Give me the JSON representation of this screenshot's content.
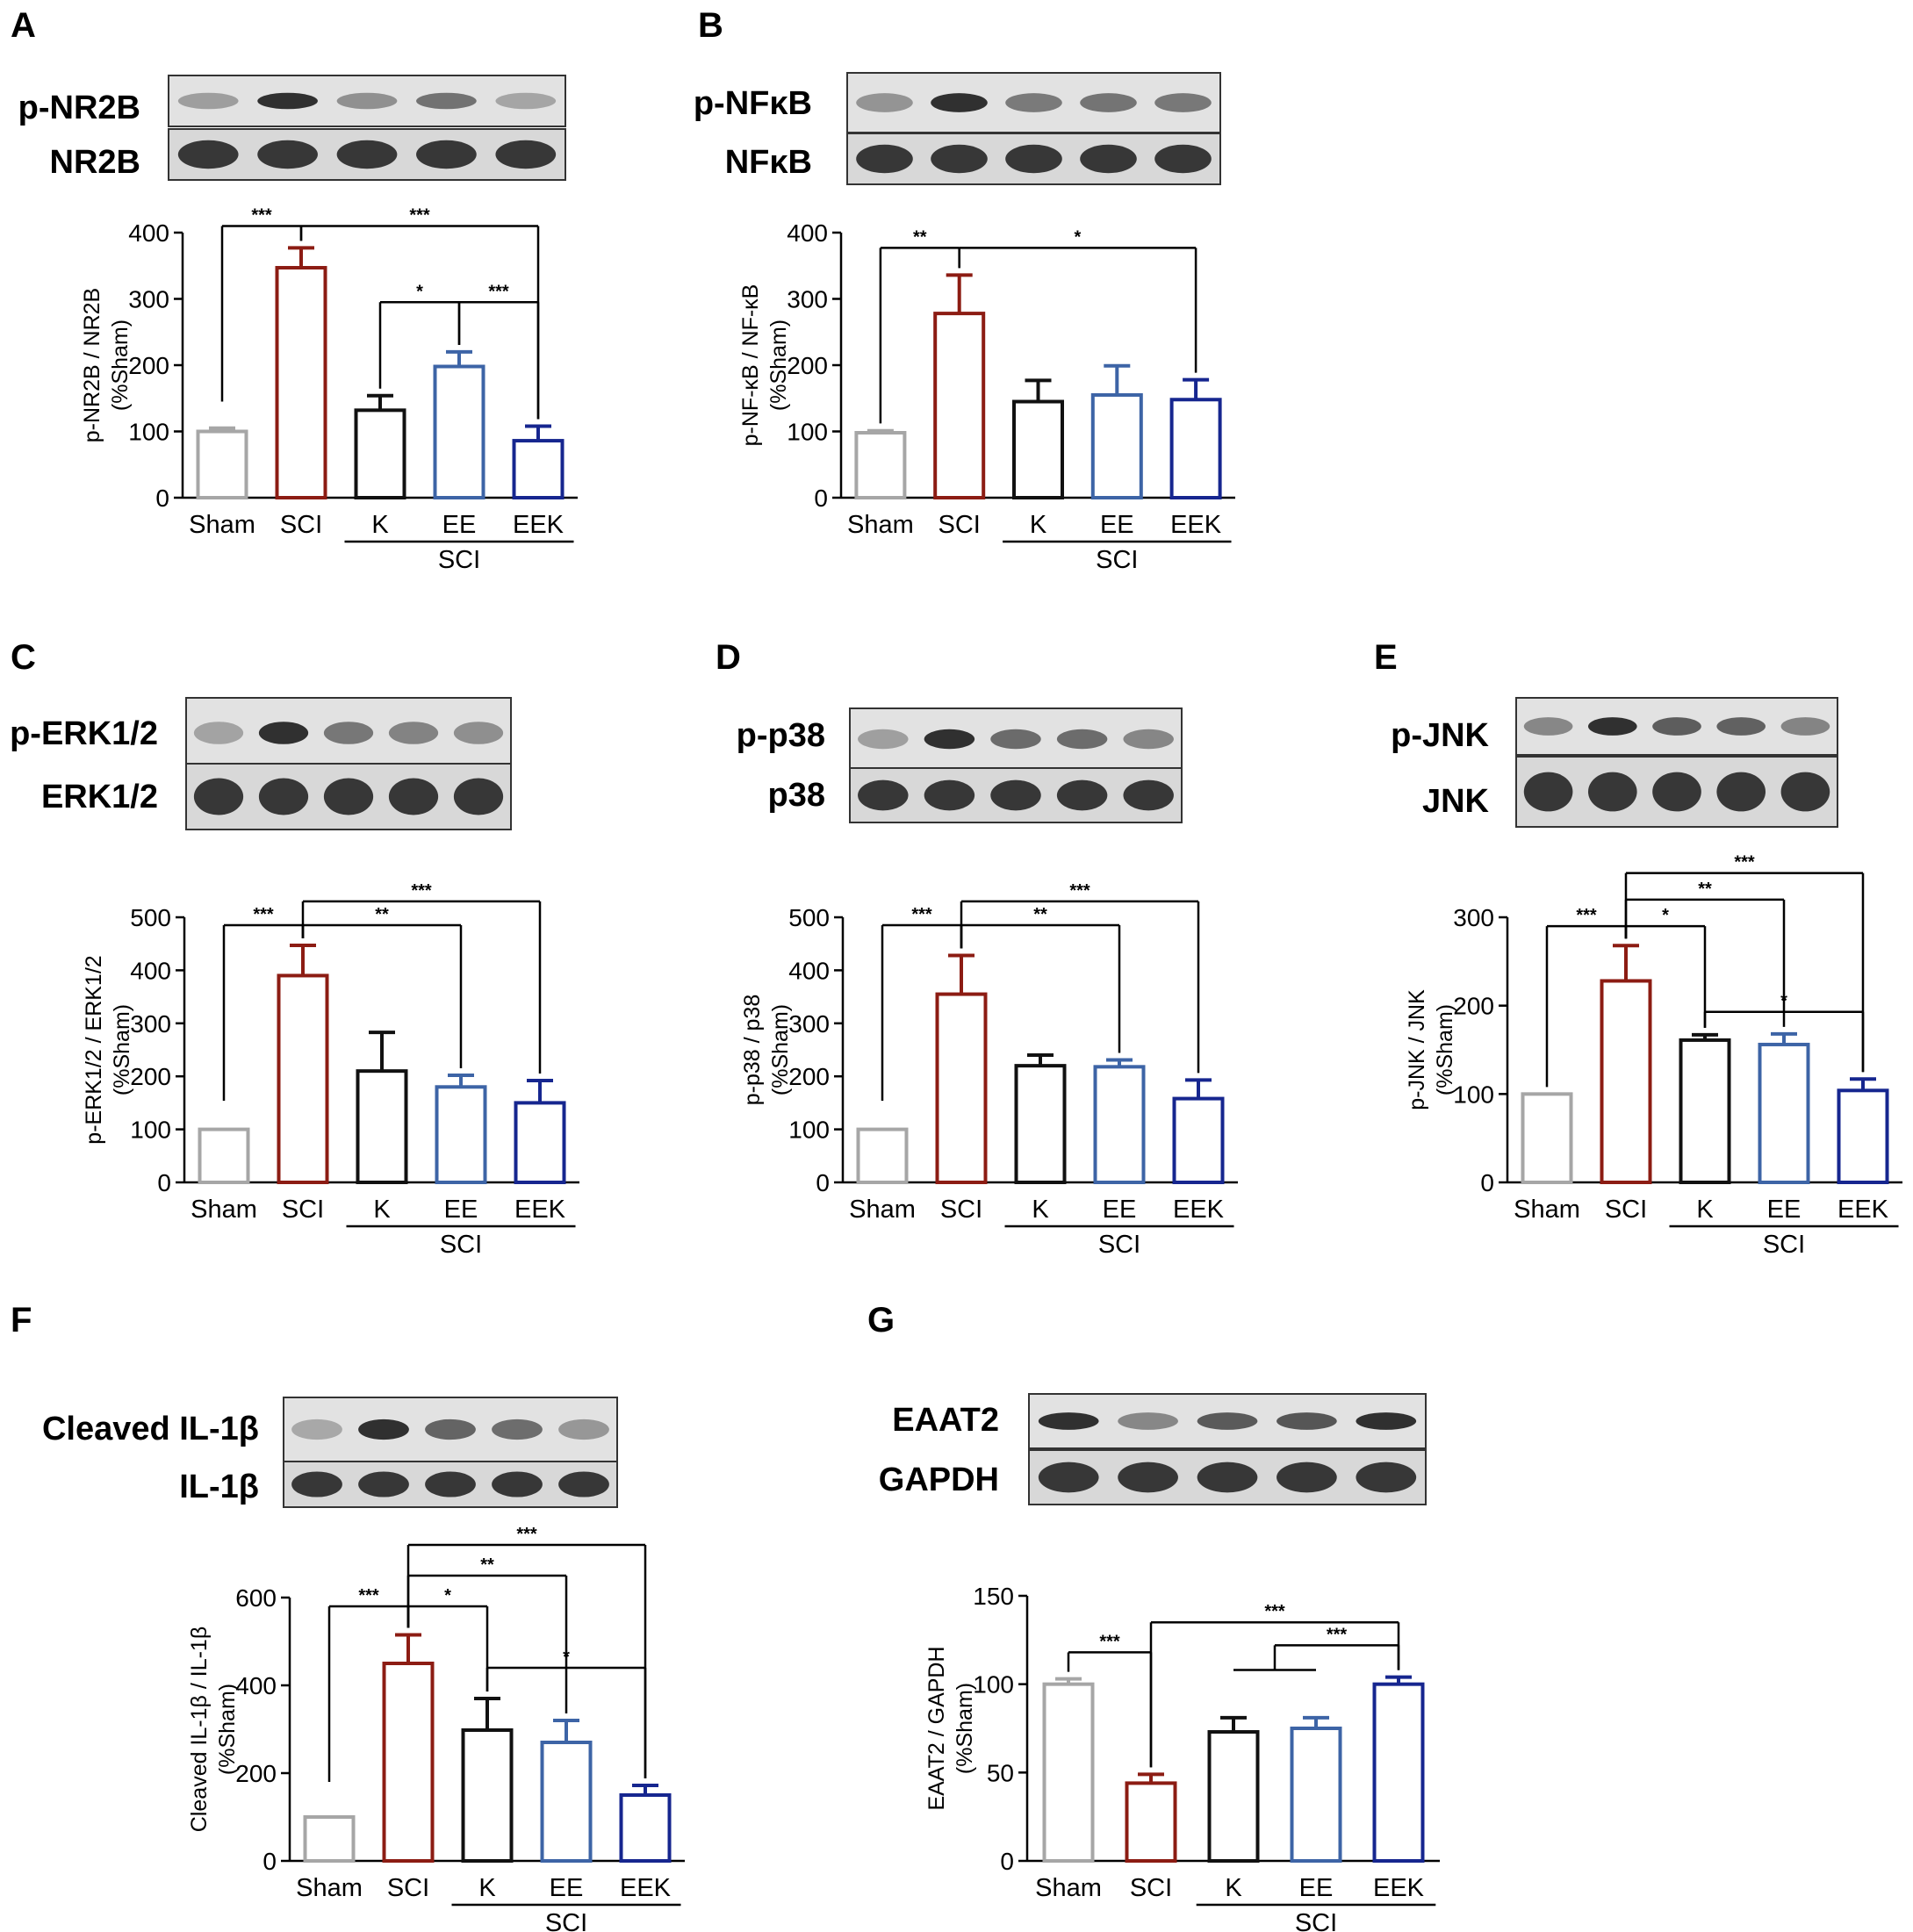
{
  "chart_data": [
    {
      "panel": "A",
      "type": "bar",
      "blot": {
        "rows": [
          "p-NR2B",
          "NR2B"
        ]
      },
      "categories": [
        "Sham",
        "SCI",
        "K",
        "EE",
        "EEK"
      ],
      "group_label": "SCI",
      "values": [
        100,
        347,
        132,
        198,
        86
      ],
      "errors": [
        5,
        30,
        22,
        22,
        22
      ],
      "colors": [
        "#a6a6a6",
        "#8c1c13",
        "#111111",
        "#3d64a6",
        "#16268f"
      ],
      "ylabel": [
        "p-NR2B / NR2B",
        "(%Sham)"
      ],
      "yticks": [
        0,
        100,
        200,
        300,
        400
      ],
      "ylim": [
        0,
        400
      ],
      "annotations": [
        {
          "from": 0,
          "to": 1,
          "label": "***",
          "level": 410
        },
        {
          "from": 1,
          "to": 4,
          "label": "***",
          "level": 410
        },
        {
          "from": 2,
          "to": 3,
          "label": "*",
          "level": 295
        },
        {
          "from": 3,
          "to": 4,
          "label": "***",
          "level": 295
        }
      ]
    },
    {
      "panel": "B",
      "type": "bar",
      "blot": {
        "rows": [
          "p-NFκB",
          "NFκB"
        ]
      },
      "categories": [
        "Sham",
        "SCI",
        "K",
        "EE",
        "EEK"
      ],
      "group_label": "SCI",
      "values": [
        98,
        278,
        145,
        155,
        148
      ],
      "errors": [
        3,
        58,
        32,
        44,
        30
      ],
      "colors": [
        "#a6a6a6",
        "#8c1c13",
        "#111111",
        "#3d64a6",
        "#16268f"
      ],
      "ylabel": [
        "p-NF-κB / NF-κB",
        "(%Sham)"
      ],
      "yticks": [
        0,
        100,
        200,
        300,
        400
      ],
      "ylim": [
        0,
        400
      ],
      "annotations": [
        {
          "from": 0,
          "to": 1,
          "label": "**",
          "level": 377
        },
        {
          "from": 1,
          "to": 4,
          "label": "*",
          "level": 377
        }
      ]
    },
    {
      "panel": "C",
      "type": "bar",
      "blot": {
        "rows": [
          "p-ERK1/2",
          "ERK1/2"
        ]
      },
      "categories": [
        "Sham",
        "SCI",
        "K",
        "EE",
        "EEK"
      ],
      "group_label": "SCI",
      "values": [
        100,
        390,
        210,
        180,
        150
      ],
      "errors": [
        0,
        57,
        73,
        22,
        42
      ],
      "colors": [
        "#a6a6a6",
        "#8c1c13",
        "#111111",
        "#3d64a6",
        "#16268f"
      ],
      "ylabel": [
        "p-ERK1/2 / ERK1/2",
        "(%Sham)"
      ],
      "yticks": [
        0,
        100,
        200,
        300,
        400,
        500
      ],
      "ylim": [
        0,
        500
      ],
      "annotations": [
        {
          "from": 0,
          "to": 1,
          "label": "***",
          "level": 485
        },
        {
          "from": 1,
          "to": 3,
          "label": "**",
          "level": 485
        },
        {
          "from": 1,
          "to": 4,
          "label": "***",
          "level": 530
        }
      ]
    },
    {
      "panel": "D",
      "type": "bar",
      "blot": {
        "rows": [
          "p-p38",
          "p38"
        ]
      },
      "categories": [
        "Sham",
        "SCI",
        "K",
        "EE",
        "EEK"
      ],
      "group_label": "SCI",
      "values": [
        100,
        355,
        220,
        218,
        158
      ],
      "errors": [
        0,
        73,
        20,
        13,
        35
      ],
      "colors": [
        "#a6a6a6",
        "#8c1c13",
        "#111111",
        "#3d64a6",
        "#16268f"
      ],
      "ylabel": [
        "p-p38 / p38",
        "(%Sham)"
      ],
      "yticks": [
        0,
        100,
        200,
        300,
        400,
        500
      ],
      "ylim": [
        0,
        500
      ],
      "annotations": [
        {
          "from": 0,
          "to": 1,
          "label": "***",
          "level": 485
        },
        {
          "from": 1,
          "to": 3,
          "label": "**",
          "level": 485
        },
        {
          "from": 1,
          "to": 4,
          "label": "***",
          "level": 530
        }
      ]
    },
    {
      "panel": "E",
      "type": "bar",
      "blot": {
        "rows": [
          "p-JNK",
          "JNK"
        ]
      },
      "categories": [
        "Sham",
        "SCI",
        "K",
        "EE",
        "EEK"
      ],
      "group_label": "SCI",
      "values": [
        100,
        228,
        161,
        156,
        104
      ],
      "errors": [
        0,
        40,
        6,
        12,
        13
      ],
      "colors": [
        "#a6a6a6",
        "#8c1c13",
        "#111111",
        "#3d64a6",
        "#16268f"
      ],
      "ylabel": [
        "p-JNK / JNK",
        "(%Sham)"
      ],
      "yticks": [
        0,
        100,
        200,
        300
      ],
      "ylim": [
        0,
        300
      ],
      "annotations": [
        {
          "from": 0,
          "to": 1,
          "label": "***",
          "level": 290
        },
        {
          "from": 1,
          "to": 2,
          "label": "*",
          "level": 290
        },
        {
          "from": 1,
          "to": 3,
          "label": "**",
          "level": 320
        },
        {
          "from": 1,
          "to": 4,
          "label": "***",
          "level": 350
        },
        {
          "from": 2,
          "to": 4,
          "label": "*",
          "level": 193
        }
      ]
    },
    {
      "panel": "F",
      "type": "bar",
      "blot": {
        "rows": [
          "Cleaved IL-1β",
          "IL-1β"
        ]
      },
      "categories": [
        "Sham",
        "SCI",
        "K",
        "EE",
        "EEK"
      ],
      "group_label": "SCI",
      "values": [
        100,
        450,
        298,
        270,
        150
      ],
      "errors": [
        0,
        65,
        72,
        50,
        22
      ],
      "colors": [
        "#a6a6a6",
        "#8c1c13",
        "#111111",
        "#3d64a6",
        "#16268f"
      ],
      "ylabel": [
        "Cleaved IL-1β / IL-1β",
        "(%Sham)"
      ],
      "yticks": [
        0,
        200,
        400,
        600
      ],
      "ylim": [
        0,
        600
      ],
      "annotations": [
        {
          "from": 0,
          "to": 1,
          "label": "***",
          "level": 580
        },
        {
          "from": 1,
          "to": 2,
          "label": "*",
          "level": 580
        },
        {
          "from": 1,
          "to": 3,
          "label": "**",
          "level": 650
        },
        {
          "from": 1,
          "to": 4,
          "label": "***",
          "level": 720
        },
        {
          "from": 2,
          "to": 4,
          "label": "*",
          "level": 440
        }
      ]
    },
    {
      "panel": "G",
      "type": "bar",
      "blot": {
        "rows": [
          "EAAT2",
          "GAPDH"
        ]
      },
      "categories": [
        "Sham",
        "SCI",
        "K",
        "EE",
        "EEK"
      ],
      "group_label": "SCI",
      "values": [
        100,
        44,
        73,
        75,
        100
      ],
      "errors": [
        3,
        5,
        8,
        6,
        4
      ],
      "colors": [
        "#a6a6a6",
        "#8c1c13",
        "#111111",
        "#3d64a6",
        "#16268f"
      ],
      "ylabel": [
        "EAAT2 / GAPDH",
        "(%Sham)"
      ],
      "yticks": [
        0,
        50,
        100,
        150
      ],
      "ylim": [
        0,
        150
      ],
      "annotations": [
        {
          "from": 0,
          "to": 1,
          "label": "***",
          "level": 118
        },
        {
          "from": 1,
          "to": 4,
          "label": "***",
          "level": 135
        },
        {
          "from": 2.5,
          "to": 4,
          "label": "***",
          "level": 122,
          "left_span": [
            2,
            3
          ],
          "left_level": 108
        }
      ]
    }
  ]
}
